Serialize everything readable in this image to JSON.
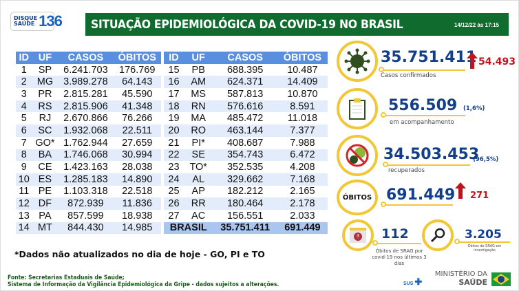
{
  "header": {
    "logo_line1": "DISQUE",
    "logo_line2": "SAÚDE",
    "logo_number": "136",
    "title": "SITUAÇÃO EPIDEMIOLÓGICA DA COVID-19 NO BRASIL",
    "datetime": "14/12/22 às 17:15"
  },
  "table": {
    "columns": [
      "ID",
      "UF",
      "CASOS",
      "ÓBITOS"
    ],
    "left": [
      [
        "1",
        "SP",
        "6.241.703",
        "176.769"
      ],
      [
        "2",
        "MG",
        "3.989.278",
        "64.143"
      ],
      [
        "3",
        "PR",
        "2.815.281",
        "45.590"
      ],
      [
        "4",
        "RS",
        "2.815.906",
        "41.348"
      ],
      [
        "5",
        "RJ",
        "2.670.866",
        "76.266"
      ],
      [
        "6",
        "SC",
        "1.932.068",
        "22.511"
      ],
      [
        "7",
        "GO*",
        "1.762.944",
        "27.659"
      ],
      [
        "8",
        "BA",
        "1.746.068",
        "30.994"
      ],
      [
        "9",
        "CE",
        "1.423.163",
        "28.038"
      ],
      [
        "10",
        "ES",
        "1.285.183",
        "14.890"
      ],
      [
        "11",
        "PE",
        "1.103.318",
        "22.518"
      ],
      [
        "12",
        "DF",
        "872.939",
        "11.836"
      ],
      [
        "13",
        "PA",
        "857.599",
        "18.938"
      ],
      [
        "14",
        "MT",
        "844.430",
        "14.985"
      ]
    ],
    "right": [
      [
        "15",
        "PB",
        "688.395",
        "10.487"
      ],
      [
        "16",
        "AM",
        "624.371",
        "14.409"
      ],
      [
        "17",
        "MS",
        "587.813",
        "10.870"
      ],
      [
        "18",
        "RN",
        "576.616",
        "8.591"
      ],
      [
        "19",
        "MA",
        "485.472",
        "11.018"
      ],
      [
        "20",
        "RO",
        "463.144",
        "7.377"
      ],
      [
        "21",
        "PI*",
        "408.687",
        "7.988"
      ],
      [
        "22",
        "SE",
        "354.743",
        "6.472"
      ],
      [
        "23",
        "TO*",
        "352.535",
        "4.208"
      ],
      [
        "24",
        "AL",
        "329.662",
        "7.168"
      ],
      [
        "25",
        "AP",
        "182.212",
        "2.165"
      ],
      [
        "26",
        "RR",
        "180.464",
        "2.178"
      ],
      [
        "27",
        "AC",
        "156.551",
        "2.033"
      ]
    ],
    "total": {
      "label": "BRASIL",
      "casos": "35.751.411",
      "obitos": "691.449"
    }
  },
  "note": "*Dados não atualizados no dia de hoje - GO, PI e TO",
  "source": {
    "line1": "Fonte: Secretarias Estaduais de Saúde;",
    "line2": "Sistema de Informação da Vigilância Epidemiológica da Gripe - dados sujeitos a alterações."
  },
  "stats": {
    "confirmados": {
      "value": "35.751.411",
      "label": "Casos confirmados",
      "increase": "54.493",
      "icon": "virus-icon"
    },
    "acompanhamento": {
      "value": "556.509",
      "label": "em acompanhamento",
      "percent": "(1,6%)",
      "icon": "clipboard-icon"
    },
    "recuperados": {
      "value": "34.503.453",
      "label": "recuperados",
      "percent": "(96,5%)",
      "icon": "no-virus-icon"
    },
    "obitos": {
      "badge": "ÓBITOS",
      "value": "691.449",
      "increase": "271"
    },
    "srag_3dias": {
      "value": "112",
      "label": "Óbitos de SRAG por covid-19 nos últimos 3 dias",
      "calendar_number": "3"
    },
    "srag_investigacao": {
      "value": "3.205",
      "label": "Óbitos de SRAG em investigação",
      "icon": "magnifier-icon"
    }
  },
  "footer": {
    "sus": "SUS",
    "ministry_line1": "MINISTÉRIO DA",
    "ministry_line2": "SAÚDE"
  },
  "colors": {
    "green": "#0f6b2e",
    "blue": "#123f8c",
    "header_blue": "#5a8fe0",
    "yellow": "#f2c737",
    "red": "#c0141c"
  }
}
